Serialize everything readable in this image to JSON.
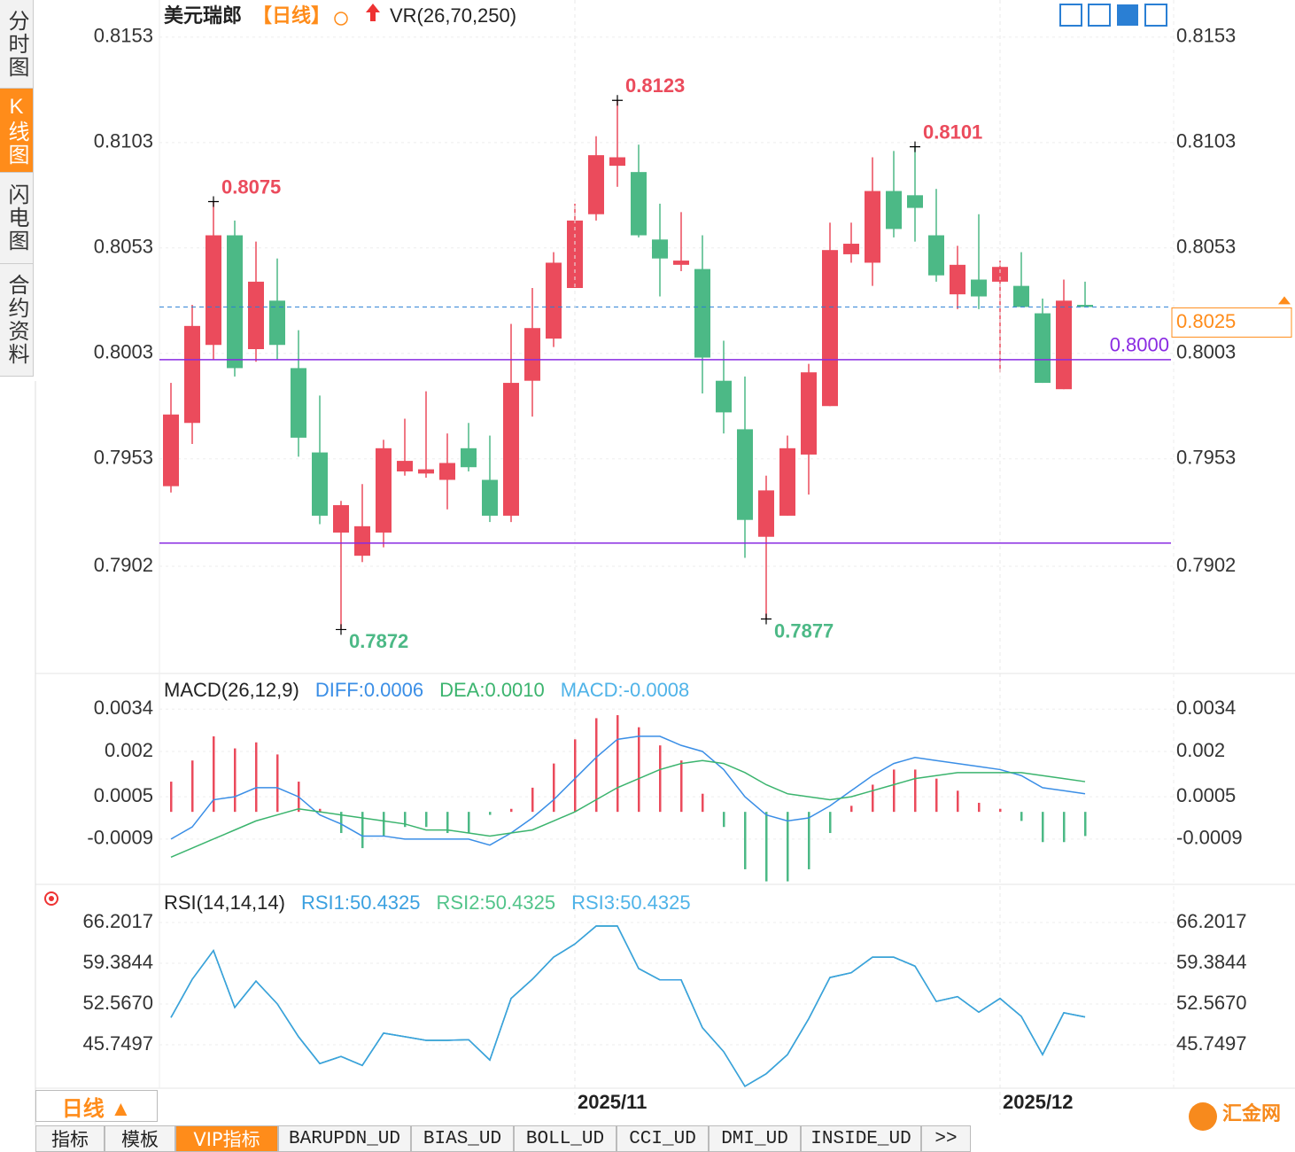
{
  "ui": {
    "side_tabs": [
      "分时图",
      "K线图",
      "闪电图",
      "合约资料"
    ],
    "period_box": "日线 ▲",
    "bottom_tabs": [
      "指标",
      "模板",
      "VIP指标",
      "BARUPDN_UD",
      "BIAS_UD",
      "BOLL_UD",
      "CCI_UD",
      "DMI_UD",
      "INSIDE_UD",
      ">>"
    ],
    "logo": "汇金网"
  },
  "chart_data": [
    {
      "type": "candlestick",
      "title": "美元瑞郎",
      "period": "【日线】",
      "indicator": "VR(26,70,250)",
      "up_color": "#eb4b5c",
      "down_color": "#4cb986",
      "categories": [
        null,
        null,
        null,
        null,
        null,
        null,
        null,
        null,
        null,
        null,
        null,
        null,
        null,
        null,
        null,
        null,
        null,
        null,
        null,
        "2025/11",
        null,
        null,
        null,
        null,
        null,
        null,
        null,
        null,
        null,
        null,
        null,
        null,
        null,
        null,
        null,
        null,
        null,
        null,
        null,
        "2025/12",
        null,
        null,
        null,
        null
      ],
      "open": [
        0.794,
        0.797,
        0.8007,
        0.8059,
        0.8005,
        0.8028,
        0.7996,
        0.7956,
        0.7918,
        0.7907,
        0.7918,
        0.7947,
        0.7946,
        0.7943,
        0.7958,
        0.7943,
        0.7926,
        0.799,
        0.801,
        0.8034,
        0.8069,
        0.8092,
        0.8089,
        0.8057,
        0.8045,
        0.8043,
        0.799,
        0.7967,
        0.7916,
        0.7926,
        0.7955,
        0.7978,
        0.805,
        0.8046,
        0.808,
        0.8078,
        0.8059,
        0.8031,
        0.8038,
        0.8037,
        0.8035,
        0.8022,
        0.7986,
        0.8026
      ],
      "high": [
        0.7989,
        0.8026,
        0.8075,
        0.8066,
        0.8056,
        0.8048,
        0.8014,
        0.7983,
        0.7933,
        0.7941,
        0.7962,
        0.7972,
        0.7985,
        0.7965,
        0.797,
        0.7964,
        0.8017,
        0.8034,
        0.8051,
        0.8074,
        0.8106,
        0.8123,
        0.8102,
        0.8074,
        0.807,
        0.8059,
        0.8009,
        0.7992,
        0.7945,
        0.7964,
        0.7998,
        0.8065,
        0.8065,
        0.8096,
        0.8099,
        0.8101,
        0.8081,
        0.8054,
        0.8069,
        0.8047,
        0.8051,
        0.8029,
        0.8038,
        0.8037
      ],
      "low": [
        0.7937,
        0.796,
        0.8,
        0.7992,
        0.7999,
        0.8,
        0.7954,
        0.7922,
        0.7872,
        0.7904,
        0.7911,
        0.7945,
        0.7944,
        0.7929,
        0.7947,
        0.7923,
        0.7923,
        0.7973,
        0.8006,
        0.8034,
        0.8066,
        0.8082,
        0.8058,
        0.803,
        0.8042,
        0.7984,
        0.7965,
        0.7906,
        0.7877,
        0.7926,
        0.7936,
        0.7978,
        0.8046,
        0.8035,
        0.8058,
        0.8056,
        0.8037,
        0.8024,
        0.8024,
        0.7994,
        0.8025,
        0.7989,
        0.7986,
        0.8025
      ],
      "close": [
        0.7974,
        0.8016,
        0.8059,
        0.7996,
        0.8037,
        0.8007,
        0.7963,
        0.7926,
        0.7931,
        0.7921,
        0.7958,
        0.7952,
        0.7948,
        0.7951,
        0.7949,
        0.7926,
        0.7989,
        0.8015,
        0.8046,
        0.8066,
        0.8097,
        0.8096,
        0.8059,
        0.8048,
        0.8047,
        0.8001,
        0.7975,
        0.7924,
        0.7938,
        0.7958,
        0.7994,
        0.8052,
        0.8055,
        0.808,
        0.8062,
        0.8072,
        0.804,
        0.8045,
        0.803,
        0.8044,
        0.8025,
        0.7989,
        0.8028,
        0.8025
      ],
      "ylim": [
        0.7852,
        0.8158
      ],
      "yticks": [
        0.8153,
        0.8103,
        0.8053,
        0.8003,
        0.7953,
        0.7902
      ],
      "annotations": [
        0.8075,
        0.7872,
        0.8123,
        0.7877,
        0.8101
      ],
      "hlines": [
        {
          "value": 0.8,
          "label": "0.8000"
        },
        {
          "value": 0.7913
        }
      ],
      "hline_color": "#8a2be2",
      "last_price": 0.8025
    },
    {
      "type": "bar",
      "title": "MACD(26,12,9)",
      "name": "MACD:-0.0008",
      "name_color": "#4fb3e8",
      "up_color": "#eb4b5c",
      "down_color": "#4cb986",
      "values": [
        0.001,
        0.0017,
        0.0025,
        0.0021,
        0.0023,
        0.0019,
        0.001,
        0.0001,
        -0.0007,
        -0.0012,
        -0.0008,
        -0.0005,
        -0.0005,
        -0.0007,
        -0.0007,
        -0.0001,
        0.0001,
        0.0008,
        0.0016,
        0.0024,
        0.0031,
        0.0032,
        0.0028,
        0.0022,
        0.0017,
        0.0006,
        -0.0005,
        -0.0019,
        -0.0023,
        -0.0023,
        -0.0019,
        -0.0007,
        0.0002,
        0.0009,
        0.0014,
        0.0014,
        0.0011,
        0.0007,
        0.0003,
        0.0001,
        -0.0003,
        -0.001,
        -0.001,
        -0.0008
      ],
      "series": [
        {
          "name": "DIFF:0.0006",
          "color": "#3a8ee6",
          "values": [
            -0.0009,
            -0.0005,
            0.0004,
            0.0005,
            0.0008,
            0.0008,
            0.0005,
            -0.0001,
            -0.0004,
            -0.0008,
            -0.0008,
            -0.0009,
            -0.0009,
            -0.0009,
            -0.0009,
            -0.0011,
            -0.0007,
            -0.0002,
            0.0004,
            0.0011,
            0.0018,
            0.0024,
            0.0025,
            0.0025,
            0.0022,
            0.002,
            0.0014,
            0.0005,
            -0.0001,
            -0.0003,
            -0.0002,
            0.0002,
            0.0007,
            0.0012,
            0.0016,
            0.0018,
            0.0017,
            0.0016,
            0.0015,
            0.0014,
            0.0012,
            0.0008,
            0.0007,
            0.0006
          ]
        },
        {
          "name": "DEA:0.0010",
          "color": "#3bb46e",
          "values": [
            -0.0015,
            -0.0012,
            -0.0009,
            -0.0006,
            -0.0003,
            -0.0001,
            0.0001,
            0,
            -0.0001,
            -0.0002,
            -0.0003,
            -0.0004,
            -0.0006,
            -0.0006,
            -0.0007,
            -0.0008,
            -0.0007,
            -0.0006,
            -0.0003,
            0,
            0.0004,
            0.0008,
            0.0011,
            0.0014,
            0.0016,
            0.0017,
            0.0016,
            0.0013,
            0.0009,
            0.0006,
            0.0005,
            0.0004,
            0.0005,
            0.0007,
            0.0009,
            0.0011,
            0.0012,
            0.0013,
            0.0013,
            0.0013,
            0.0013,
            0.0012,
            0.0011,
            0.001
          ]
        }
      ],
      "ylim": [
        -0.0024,
        0.0037
      ],
      "yticks": [
        0.0034,
        0.002,
        0.0005,
        -0.0009
      ]
    },
    {
      "type": "line",
      "title": "RSI(14,14,14)",
      "series": [
        {
          "name": "RSI3:50.4325",
          "color": "#4fb3e8",
          "values": [
            50.3,
            56.7,
            61.5,
            52.0,
            56.4,
            52.6,
            47.1,
            42.6,
            43.8,
            42.3,
            47.7,
            47.1,
            46.5,
            46.5,
            46.6,
            43.2,
            53.5,
            56.7,
            60.4,
            62.6,
            65.6,
            65.6,
            58.5,
            56.6,
            56.6,
            48.6,
            44.6,
            38.8,
            40.9,
            44.1,
            50.1,
            57.0,
            57.8,
            60.4,
            60.4,
            58.9,
            53.0,
            53.8,
            51.2,
            53.5,
            50.5,
            44.1,
            51.1,
            50.4
          ]
        },
        {
          "name": "RSI2:50.4325",
          "color": "#52c48a",
          "values": [
            50.3,
            56.7,
            61.5,
            52.0,
            56.4,
            52.6,
            47.1,
            42.6,
            43.8,
            42.3,
            47.7,
            47.1,
            46.5,
            46.5,
            46.6,
            43.2,
            53.5,
            56.7,
            60.4,
            62.6,
            65.6,
            65.6,
            58.5,
            56.6,
            56.6,
            48.6,
            44.6,
            38.8,
            40.9,
            44.1,
            50.1,
            57.0,
            57.8,
            60.4,
            60.4,
            58.9,
            53.0,
            53.8,
            51.2,
            53.5,
            50.5,
            44.1,
            51.1,
            50.4
          ]
        },
        {
          "name": "RSI1:50.4325",
          "color": "#3aa0e0",
          "values": [
            50.3,
            56.7,
            61.5,
            52.0,
            56.4,
            52.6,
            47.1,
            42.6,
            43.8,
            42.3,
            47.7,
            47.1,
            46.5,
            46.5,
            46.6,
            43.2,
            53.5,
            56.7,
            60.4,
            62.6,
            65.6,
            65.6,
            58.5,
            56.6,
            56.6,
            48.6,
            44.6,
            38.8,
            40.9,
            44.1,
            50.1,
            57.0,
            57.8,
            60.4,
            60.4,
            58.9,
            53.0,
            53.8,
            51.2,
            53.5,
            50.5,
            44.1,
            51.1,
            50.4
          ]
        }
      ],
      "ylim": [
        38.49,
        67.83
      ],
      "yticks": [
        66.2017,
        59.3844,
        {
          "value": 52.567,
          "label": "52.5670"
        },
        45.7497
      ]
    }
  ]
}
